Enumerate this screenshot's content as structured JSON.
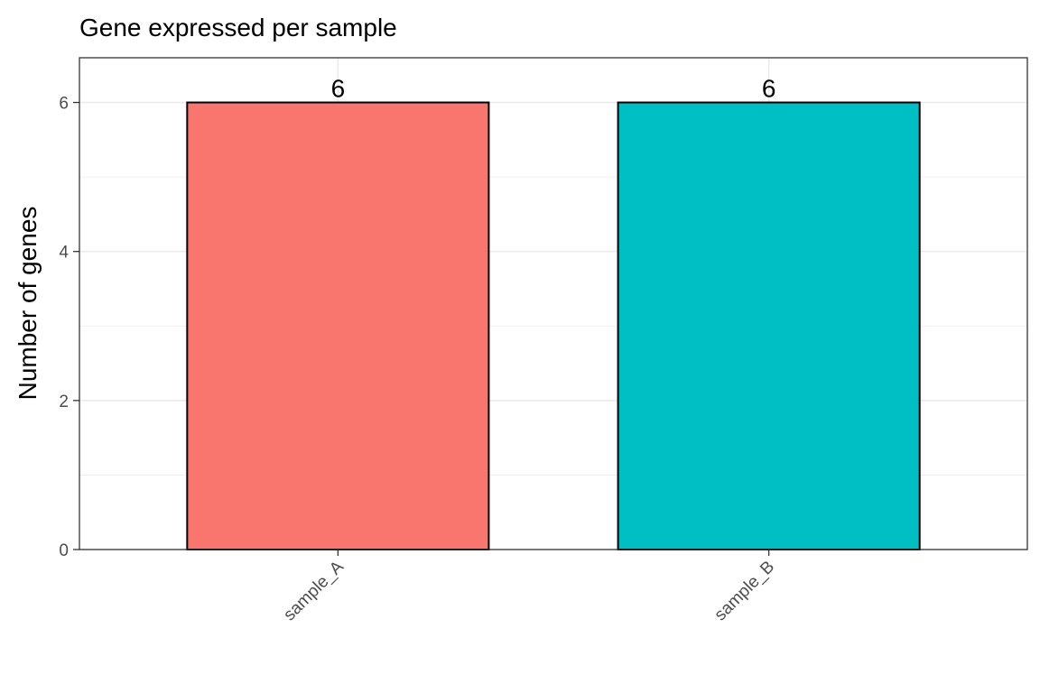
{
  "chart_data": {
    "type": "bar",
    "title": "Gene expressed per sample",
    "xlabel": "",
    "ylabel": "Number of genes",
    "categories": [
      "sample_A",
      "sample_B"
    ],
    "values": [
      6,
      6
    ],
    "data_labels": [
      "6",
      "6"
    ],
    "colors": [
      "#F8766D",
      "#00BFC4"
    ],
    "bar_outline_color": "#000000",
    "ylim": [
      0,
      6.6
    ],
    "yticks": [
      0,
      2,
      4,
      6
    ],
    "ytick_labels": [
      "0",
      "2",
      "4",
      "6"
    ],
    "grid": true,
    "legend": "none",
    "x_tick_label_rotation_deg": -45
  }
}
